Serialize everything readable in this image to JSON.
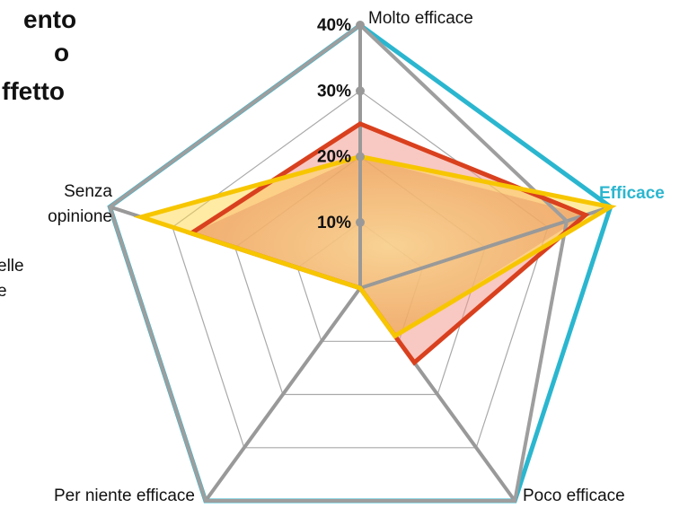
{
  "title": {
    "lines": [
      "ento",
      "o",
      "ffetto"
    ]
  },
  "legend": {
    "lines": [
      "elle",
      "e"
    ]
  },
  "chart_data": {
    "type": "radar",
    "axes": [
      {
        "label": "Molto efficace",
        "label_lines": [
          "Molto efficace"
        ],
        "highlight": false
      },
      {
        "label": "Efficace",
        "label_lines": [
          "Efficace"
        ],
        "highlight": true
      },
      {
        "label": "Poco efficace",
        "label_lines": [
          "Poco efficace"
        ],
        "highlight": false
      },
      {
        "label": "Per niente efficace",
        "label_lines": [
          "Per niente efficace"
        ],
        "highlight": false
      },
      {
        "label": "Senza opinione",
        "label_lines": [
          "Senza",
          "opinione"
        ],
        "highlight": false
      }
    ],
    "ticks": [
      10,
      20,
      30,
      40
    ],
    "tick_labels": [
      "10%",
      "20%",
      "30%",
      "40%"
    ],
    "rmax": 40,
    "series": [
      {
        "values": [
          25,
          36,
          14,
          0,
          27
        ],
        "stroke": "#d9401e",
        "fill": "#f29a90"
      },
      {
        "values": [
          20,
          40,
          9,
          0,
          35
        ],
        "stroke": "#f7c600",
        "fill": "#ffd84a"
      },
      {
        "values": [
          40,
          33,
          40,
          40,
          40
        ],
        "stroke": "#9e9e9e",
        "fill": "none"
      }
    ],
    "colors": {
      "outer_frame": "#2bb6cf",
      "grid": "#a9a9a9",
      "highlight": "#2bb6cf"
    }
  }
}
